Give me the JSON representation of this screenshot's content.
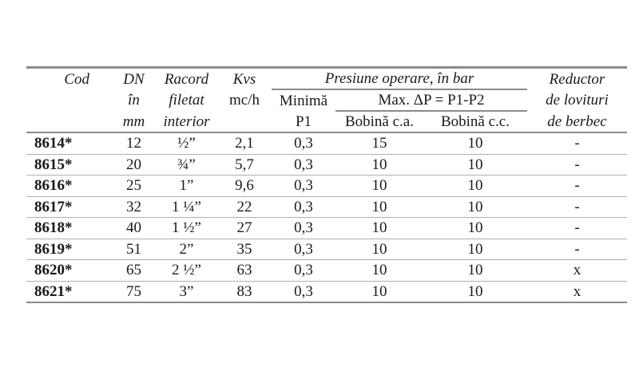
{
  "header": {
    "cod": "Cod",
    "dn": [
      "DN",
      "în",
      "mm"
    ],
    "racord": [
      "Racord",
      "filetat",
      "interior"
    ],
    "kvs": [
      "Kvs",
      "mc/h"
    ],
    "presiune": "Presiune operare, în bar",
    "minima": [
      "Minimă",
      "P1"
    ],
    "max_dp": "Max. ΔP = P1-P2",
    "bobina_ca": "Bobină c.a.",
    "bobina_cc": "Bobină c.c.",
    "reductor": [
      "Reductor",
      "de lovituri",
      "de berbec"
    ]
  },
  "rows": [
    [
      "8614*",
      "12",
      "½”",
      "2,1",
      "0,3",
      "15",
      "10",
      "-"
    ],
    [
      "8615*",
      "20",
      "¾”",
      "5,7",
      "0,3",
      "10",
      "10",
      "-"
    ],
    [
      "8616*",
      "25",
      "1”",
      "9,6",
      "0,3",
      "10",
      "10",
      "-"
    ],
    [
      "8617*",
      "32",
      "1 ¼”",
      "22",
      "0,3",
      "10",
      "10",
      "-"
    ],
    [
      "8618*",
      "40",
      "1 ½”",
      "27",
      "0,3",
      "10",
      "10",
      "-"
    ],
    [
      "8619*",
      "51",
      "2”",
      "35",
      "0,3",
      "10",
      "10",
      "-"
    ],
    [
      "8620*",
      "65",
      "2 ½”",
      "63",
      "0,3",
      "10",
      "10",
      "x"
    ],
    [
      "8621*",
      "75",
      "3”",
      "83",
      "0,3",
      "10",
      "10",
      "x"
    ]
  ]
}
